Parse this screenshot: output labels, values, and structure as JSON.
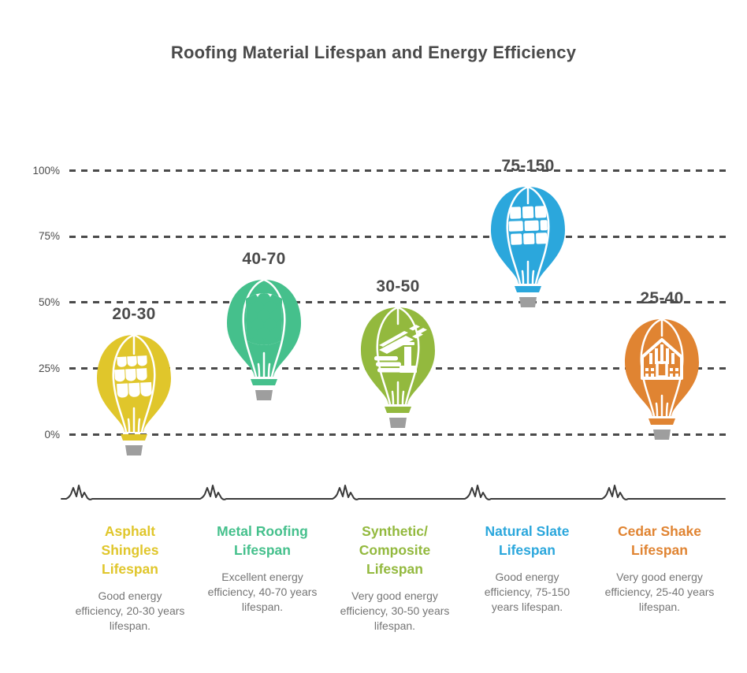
{
  "title": "Roofing Material Lifespan and Energy Efficiency",
  "chart_data": {
    "type": "pictorial-bar",
    "pictogram": "hot-air-balloon",
    "title": "Roofing Material Lifespan and Energy Efficiency",
    "xlabel": "",
    "ylabel": "",
    "ylim": [
      0,
      100
    ],
    "grid": "horizontal dashed lines at 0/25/50/75/100%",
    "legend_position": "bottom column labels",
    "basket_color": "#9e9e9e",
    "y_ticks": [
      {
        "label": "100%",
        "pct": 100
      },
      {
        "label": "75%",
        "pct": 75
      },
      {
        "label": "50%",
        "pct": 50
      },
      {
        "label": "25%",
        "pct": 25
      },
      {
        "label": "0%",
        "pct": 0
      }
    ],
    "materials": [
      {
        "name_lines": [
          "Asphalt",
          "Shingles",
          "Lifespan"
        ],
        "lifespan_label": "20-30",
        "lifespan_years": [
          20,
          30
        ],
        "description": "Good energy efficiency, 20-30 years lifespan.",
        "color": "#e0c62b",
        "balloon_center_pct": 19.3,
        "icon": "asphalt-shingles-icon"
      },
      {
        "name_lines": [
          "Metal Roofing",
          "Lifespan"
        ],
        "lifespan_label": "40-70",
        "lifespan_years": [
          40,
          70
        ],
        "description": "Excellent energy efficiency, 40-70 years lifespan.",
        "color": "#45c08c",
        "balloon_center_pct": 40.3,
        "icon": "metal-scales-icon"
      },
      {
        "name_lines": [
          "Synthetic/",
          "Composite",
          "Lifespan"
        ],
        "lifespan_label": "30-50",
        "lifespan_years": [
          30,
          50
        ],
        "description": "Very good energy efficiency, 30-50 years lifespan.",
        "color": "#93b93e",
        "balloon_center_pct": 29.9,
        "icon": "composite-sheets-icon"
      },
      {
        "name_lines": [
          "Natural Slate",
          "Lifespan"
        ],
        "lifespan_label": "75-150",
        "lifespan_years": [
          75,
          150
        ],
        "description": "Good energy efficiency, 75-150 years lifespan.",
        "color": "#2ba7dc",
        "balloon_center_pct": 75.6,
        "icon": "slate-tiles-icon"
      },
      {
        "name_lines": [
          "Cedar Shake",
          "Lifespan"
        ],
        "lifespan_label": "25-40",
        "lifespan_years": [
          25,
          40
        ],
        "description": "Very good energy efficiency, 25-40 years lifespan.",
        "color": "#e08432",
        "balloon_center_pct": 25.3,
        "icon": "cedar-house-icon"
      }
    ]
  }
}
